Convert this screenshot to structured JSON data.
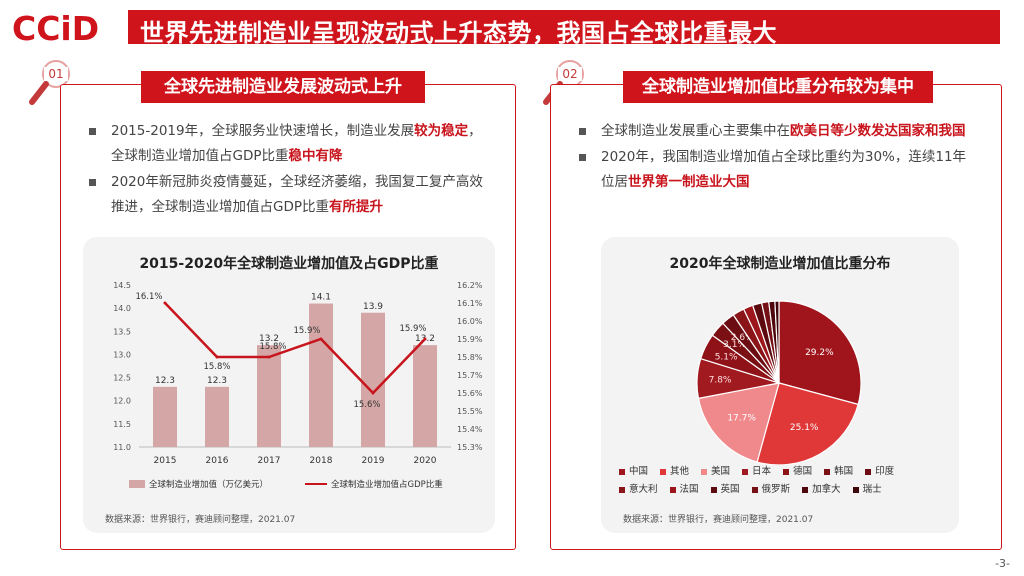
{
  "logo": {
    "text": "CCiD",
    "color": "#d0141c"
  },
  "header": {
    "title": "世界先进制造业呈现波动式上升态势，我国占全球比重最大"
  },
  "page_number": "-3-",
  "panels": [
    {
      "badge": "01",
      "heading": "全球先进制造业发展波动式上升",
      "bullets": [
        {
          "parts": [
            {
              "t": "2015-2019年，全球服务业快速增长，制造业发展"
            },
            {
              "t": "较为稳定",
              "hl": true
            },
            {
              "t": "，全球制造业增加值占GDP比重"
            },
            {
              "t": "稳中有降",
              "hl": true
            }
          ]
        },
        {
          "parts": [
            {
              "t": "2020年新冠肺炎疫情蔓延，全球经济萎缩，我国复工复产高效推进，全球制造业增加值占GDP比重"
            },
            {
              "t": "有所提升",
              "hl": true
            }
          ]
        }
      ],
      "source": "数据来源：世界银行，赛迪顾问整理，2021.07"
    },
    {
      "badge": "02",
      "heading": "全球制造业增加值比重分布较为集中",
      "bullets": [
        {
          "parts": [
            {
              "t": "全球制造业发展重心主要集中在"
            },
            {
              "t": "欧美日等少数发达国家和我国",
              "hl": true
            }
          ]
        },
        {
          "parts": [
            {
              "t": "2020年，我国制造业增加值占全球比重约为30%，连续11年位居"
            },
            {
              "t": "世界第一制造业大国",
              "hl": true
            }
          ]
        }
      ],
      "source": "数据来源：世界银行，赛迪顾问整理，2021.07"
    }
  ],
  "chart_data": [
    {
      "type": "bar",
      "title": "2015-2020年全球制造业增加值及占GDP比重",
      "categories": [
        "2015",
        "2016",
        "2017",
        "2018",
        "2019",
        "2020"
      ],
      "series": [
        {
          "name": "全球制造业增加值（万亿美元）",
          "type": "bar",
          "axis": "left",
          "color": "#d4a6a6",
          "values": [
            12.3,
            12.3,
            13.2,
            14.1,
            13.9,
            13.2
          ],
          "labels": [
            "12.3",
            "12.3",
            "13.2",
            "14.1",
            "13.9",
            "13.2"
          ]
        },
        {
          "name": "全球制造业增加值占GDP比重",
          "type": "line",
          "axis": "right",
          "color": "#c8141c",
          "values": [
            16.1,
            15.8,
            15.8,
            15.9,
            15.6,
            15.9
          ],
          "labels": [
            "16.1%",
            "15.8%",
            "15.8%",
            "15.9%",
            "15.6%",
            "15.9%"
          ]
        }
      ],
      "y_left": {
        "min": 11.0,
        "max": 14.5,
        "step": 0.5,
        "ticks": [
          "11.0",
          "11.5",
          "12.0",
          "12.5",
          "13.0",
          "13.5",
          "14.0",
          "14.5"
        ]
      },
      "y_right": {
        "min": 15.3,
        "max": 16.2,
        "step": 0.1,
        "ticks": [
          "15.3%",
          "15.4%",
          "15.5%",
          "15.6%",
          "15.7%",
          "15.8%",
          "15.9%",
          "16.0%",
          "16.1%",
          "16.2%"
        ]
      },
      "grid": false,
      "legend": "bottom"
    },
    {
      "type": "pie",
      "title": "2020年全球制造业增加值比重分布",
      "slices": [
        {
          "label": "中国",
          "value": 29.2,
          "text": "29.2%",
          "color": "#a0141c"
        },
        {
          "label": "其他",
          "value": 25.1,
          "text": "25.1%",
          "color": "#e03838"
        },
        {
          "label": "美国",
          "value": 17.7,
          "text": "17.7%",
          "color": "#f0898c"
        },
        {
          "label": "日本",
          "value": 7.8,
          "text": "7.8%",
          "color": "#a01a20"
        },
        {
          "label": "德国",
          "value": 5.1,
          "text": "5.1%",
          "color": "#8e1218"
        },
        {
          "label": "韩国",
          "value": 3.1,
          "text": "3.1%",
          "color": "#7a0f14"
        },
        {
          "label": "印度",
          "value": 2.6,
          "text": "2.6%",
          "color": "#6b0d12"
        },
        {
          "label": "意大利",
          "value": 2.3,
          "text": "",
          "color": "#8a1418"
        },
        {
          "label": "法国",
          "value": 1.9,
          "text": "",
          "color": "#9c161b"
        },
        {
          "label": "英国",
          "value": 1.8,
          "text": "",
          "color": "#5c0a0f"
        },
        {
          "label": "俄罗斯",
          "value": 1.4,
          "text": "",
          "color": "#741016"
        },
        {
          "label": "加拿大",
          "value": 1.2,
          "text": "",
          "color": "#4e080c"
        },
        {
          "label": "瑞士",
          "value": 0.8,
          "text": "",
          "color": "#3e0609"
        }
      ],
      "legend": "bottom"
    }
  ]
}
